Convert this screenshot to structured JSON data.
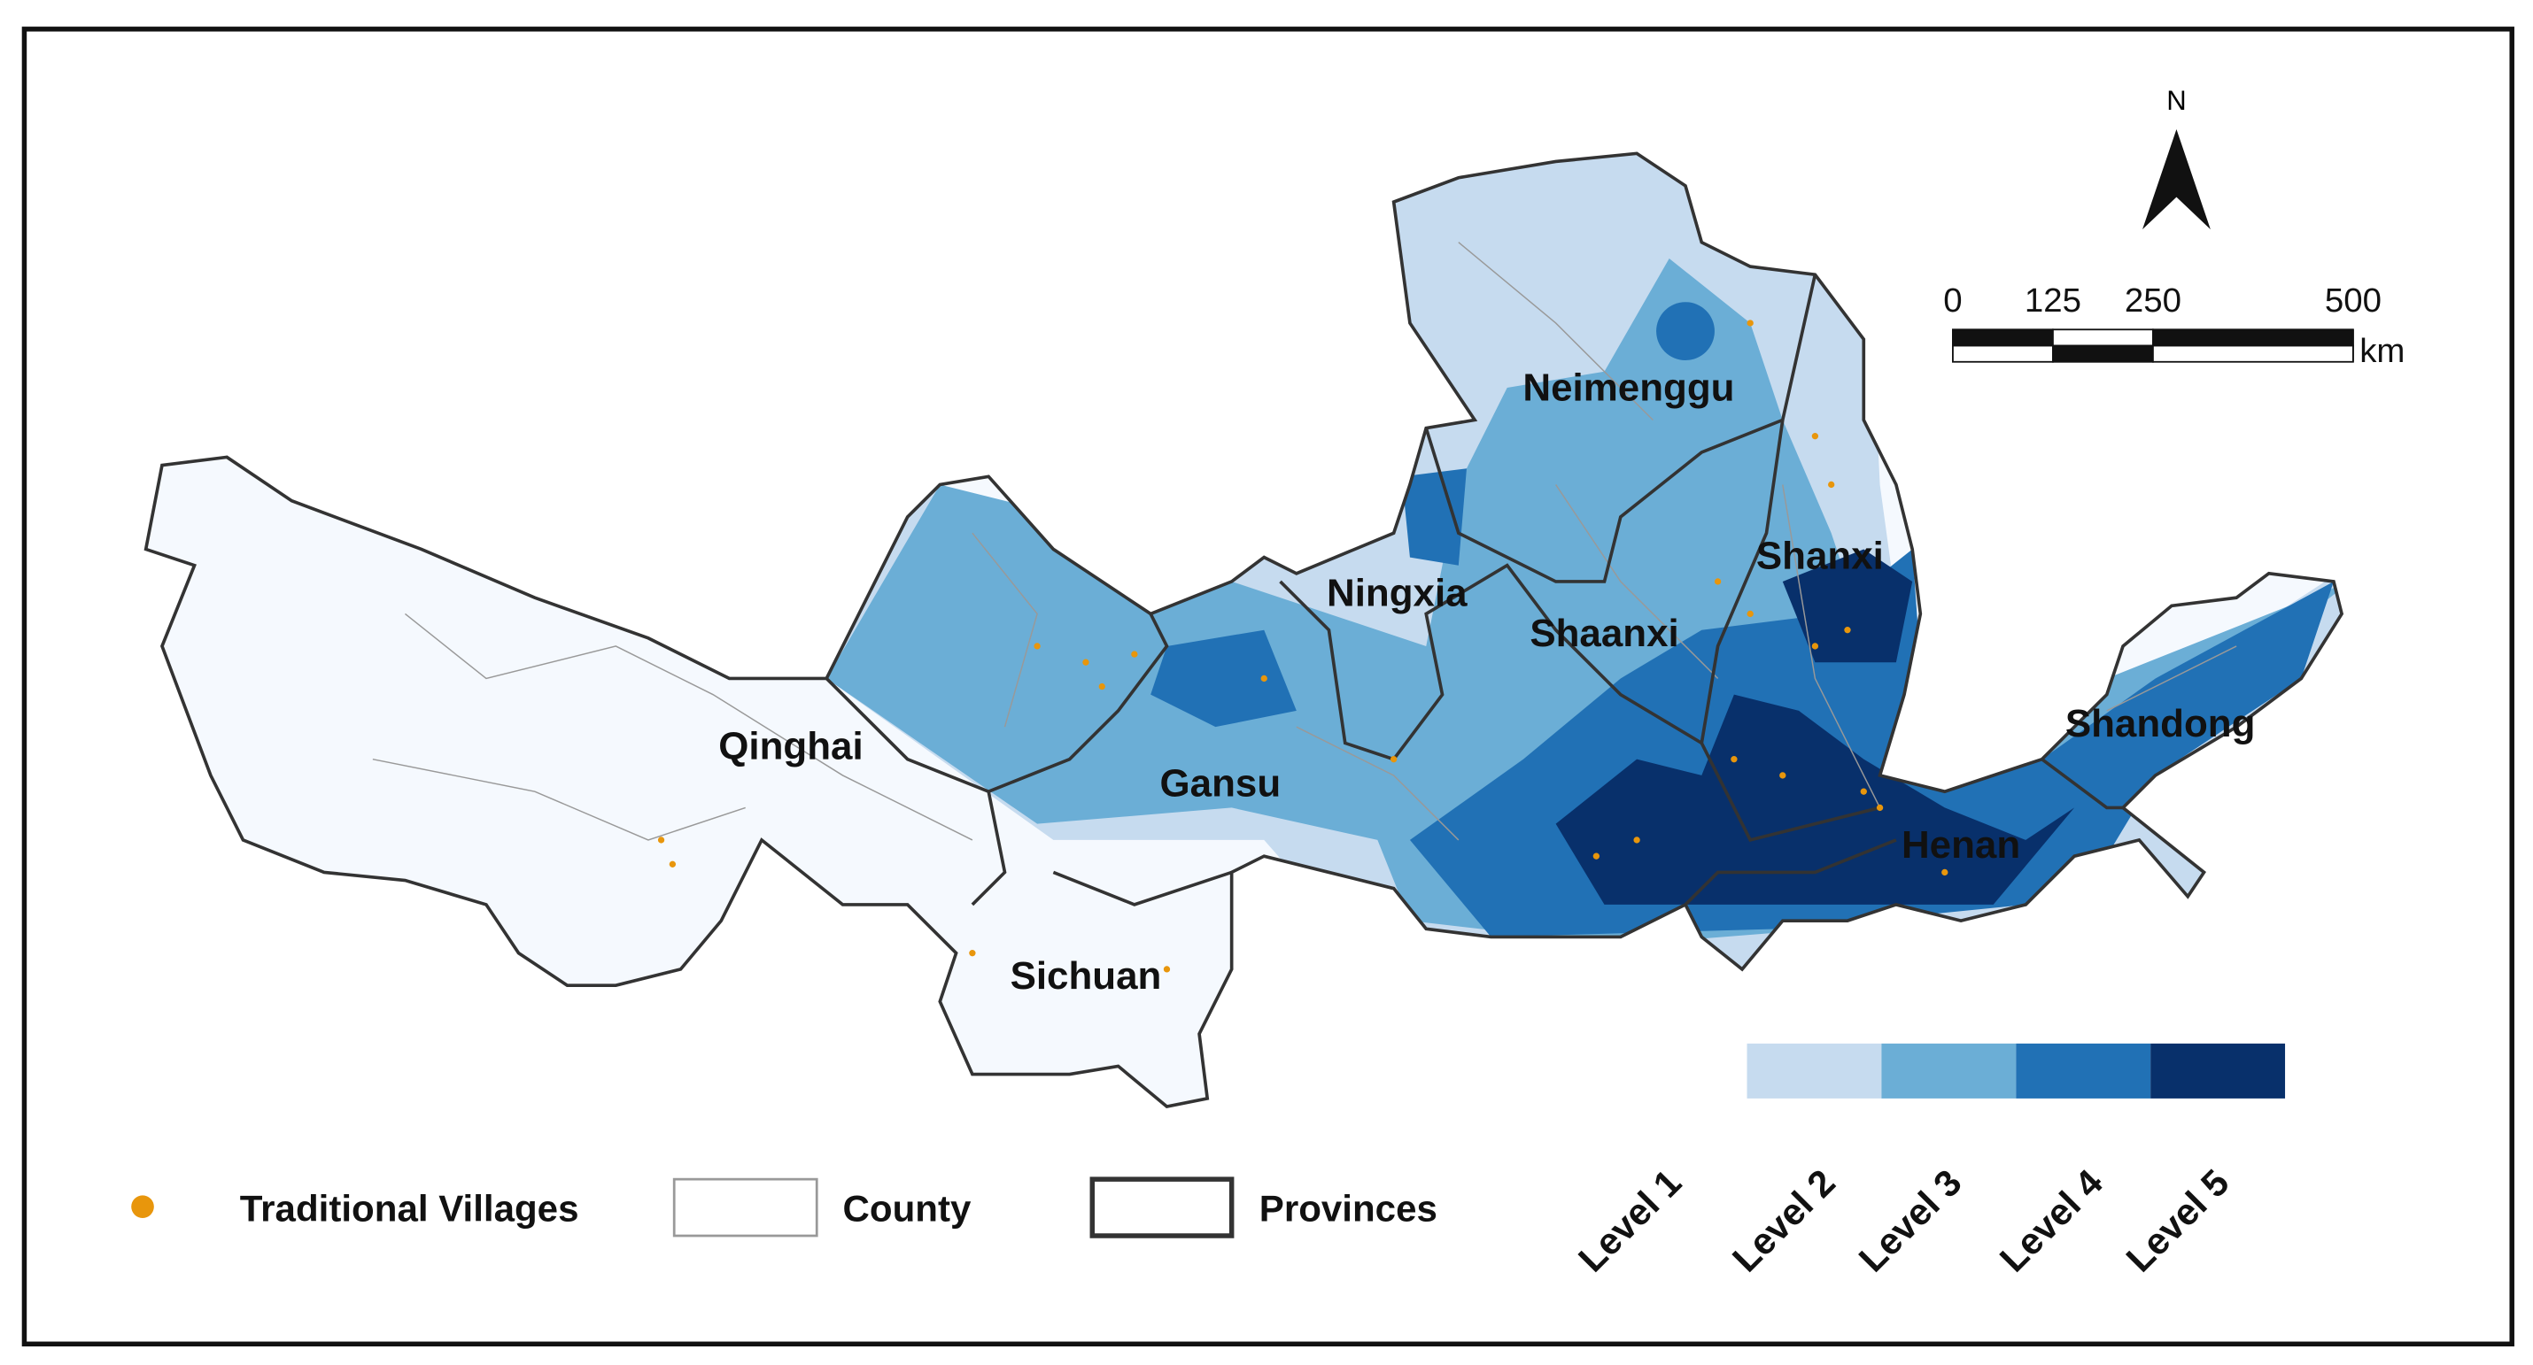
{
  "map": {
    "north": "N",
    "scale_bar": {
      "ticks": [
        0,
        125,
        250,
        500
      ],
      "unit": "km"
    },
    "provinces": [
      "Neimenggu",
      "Shanxi",
      "Ningxia",
      "Shaanxi",
      "Qinghai",
      "Gansu",
      "Shandong",
      "Henan",
      "Sichuan"
    ],
    "legend": {
      "villages": "Traditional Villages",
      "county": "County",
      "provinces": "Provinces",
      "village_color": "#e8960c"
    },
    "levels": {
      "labels": [
        "Level 1",
        "Level 2",
        "Level 3",
        "Level 4",
        "Level 5"
      ],
      "bar_colors": [
        "#c6dbef",
        "#6baed6",
        "#2171b5",
        "#08306b"
      ]
    }
  }
}
